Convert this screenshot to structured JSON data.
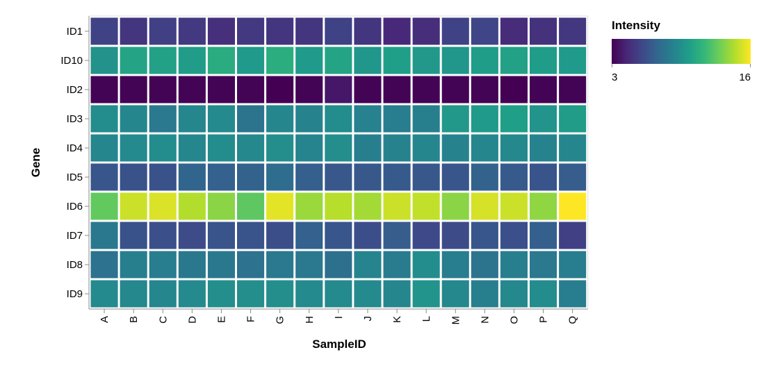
{
  "chart_data": {
    "type": "heatmap",
    "xlabel": "SampleID",
    "ylabel": "Gene",
    "x_categories": [
      "A",
      "B",
      "C",
      "D",
      "E",
      "F",
      "G",
      "H",
      "I",
      "J",
      "K",
      "L",
      "M",
      "N",
      "O",
      "P",
      "Q"
    ],
    "y_categories": [
      "ID1",
      "ID10",
      "ID2",
      "ID3",
      "ID4",
      "ID5",
      "ID6",
      "ID7",
      "ID8",
      "ID9"
    ],
    "color_scale": "viridis",
    "legend": {
      "title": "Intensity",
      "min_label": "3",
      "max_label": "16",
      "domain": [
        3,
        16
      ],
      "position": "top-right"
    },
    "values": [
      [
        5.6,
        5.0,
        5.5,
        5.2,
        4.8,
        5.2,
        5.0,
        5.0,
        5.6,
        5.0,
        4.5,
        4.7,
        5.6,
        5.7,
        4.6,
        4.9,
        5.1
      ],
      [
        9.6,
        10.6,
        10.4,
        10.1,
        11.0,
        10.0,
        11.1,
        10.0,
        10.6,
        9.8,
        10.3,
        9.9,
        9.8,
        10.2,
        10.4,
        10.2,
        10.0
      ],
      [
        3.1,
        3.1,
        3.1,
        3.1,
        3.1,
        3.1,
        3.0,
        3.1,
        3.8,
        3.1,
        3.1,
        3.1,
        3.1,
        3.1,
        3.0,
        3.1,
        3.1
      ],
      [
        9.3,
        9.0,
        8.3,
        9.0,
        9.2,
        8.0,
        9.0,
        8.8,
        9.3,
        8.7,
        8.5,
        8.6,
        9.9,
        10.0,
        10.3,
        9.7,
        10.1
      ],
      [
        9.0,
        9.2,
        9.3,
        9.0,
        9.3,
        9.1,
        9.4,
        8.9,
        9.4,
        8.6,
        8.8,
        9.0,
        8.8,
        9.0,
        9.1,
        8.8,
        9.0
      ],
      [
        6.5,
        6.3,
        6.3,
        7.2,
        7.0,
        7.1,
        7.6,
        6.9,
        6.6,
        6.6,
        6.7,
        6.6,
        6.5,
        7.1,
        6.7,
        6.4,
        6.8
      ],
      [
        12.8,
        15.0,
        15.3,
        14.5,
        13.7,
        12.7,
        15.5,
        14.0,
        14.6,
        14.2,
        15.0,
        14.8,
        13.7,
        15.2,
        15.0,
        13.8,
        16.0
      ],
      [
        8.2,
        6.3,
        6.2,
        6.0,
        6.4,
        6.4,
        6.1,
        7.0,
        6.5,
        6.1,
        6.8,
        5.9,
        6.0,
        6.5,
        6.2,
        6.9,
        5.5
      ],
      [
        7.9,
        8.6,
        8.5,
        8.2,
        8.2,
        7.9,
        8.3,
        8.3,
        7.8,
        8.9,
        8.4,
        9.3,
        8.5,
        8.0,
        8.6,
        8.3,
        8.5
      ],
      [
        9.2,
        9.1,
        9.0,
        9.2,
        9.4,
        9.4,
        9.4,
        9.2,
        9.2,
        9.2,
        9.0,
        9.7,
        9.1,
        8.6,
        9.1,
        9.3,
        8.5
      ]
    ]
  }
}
